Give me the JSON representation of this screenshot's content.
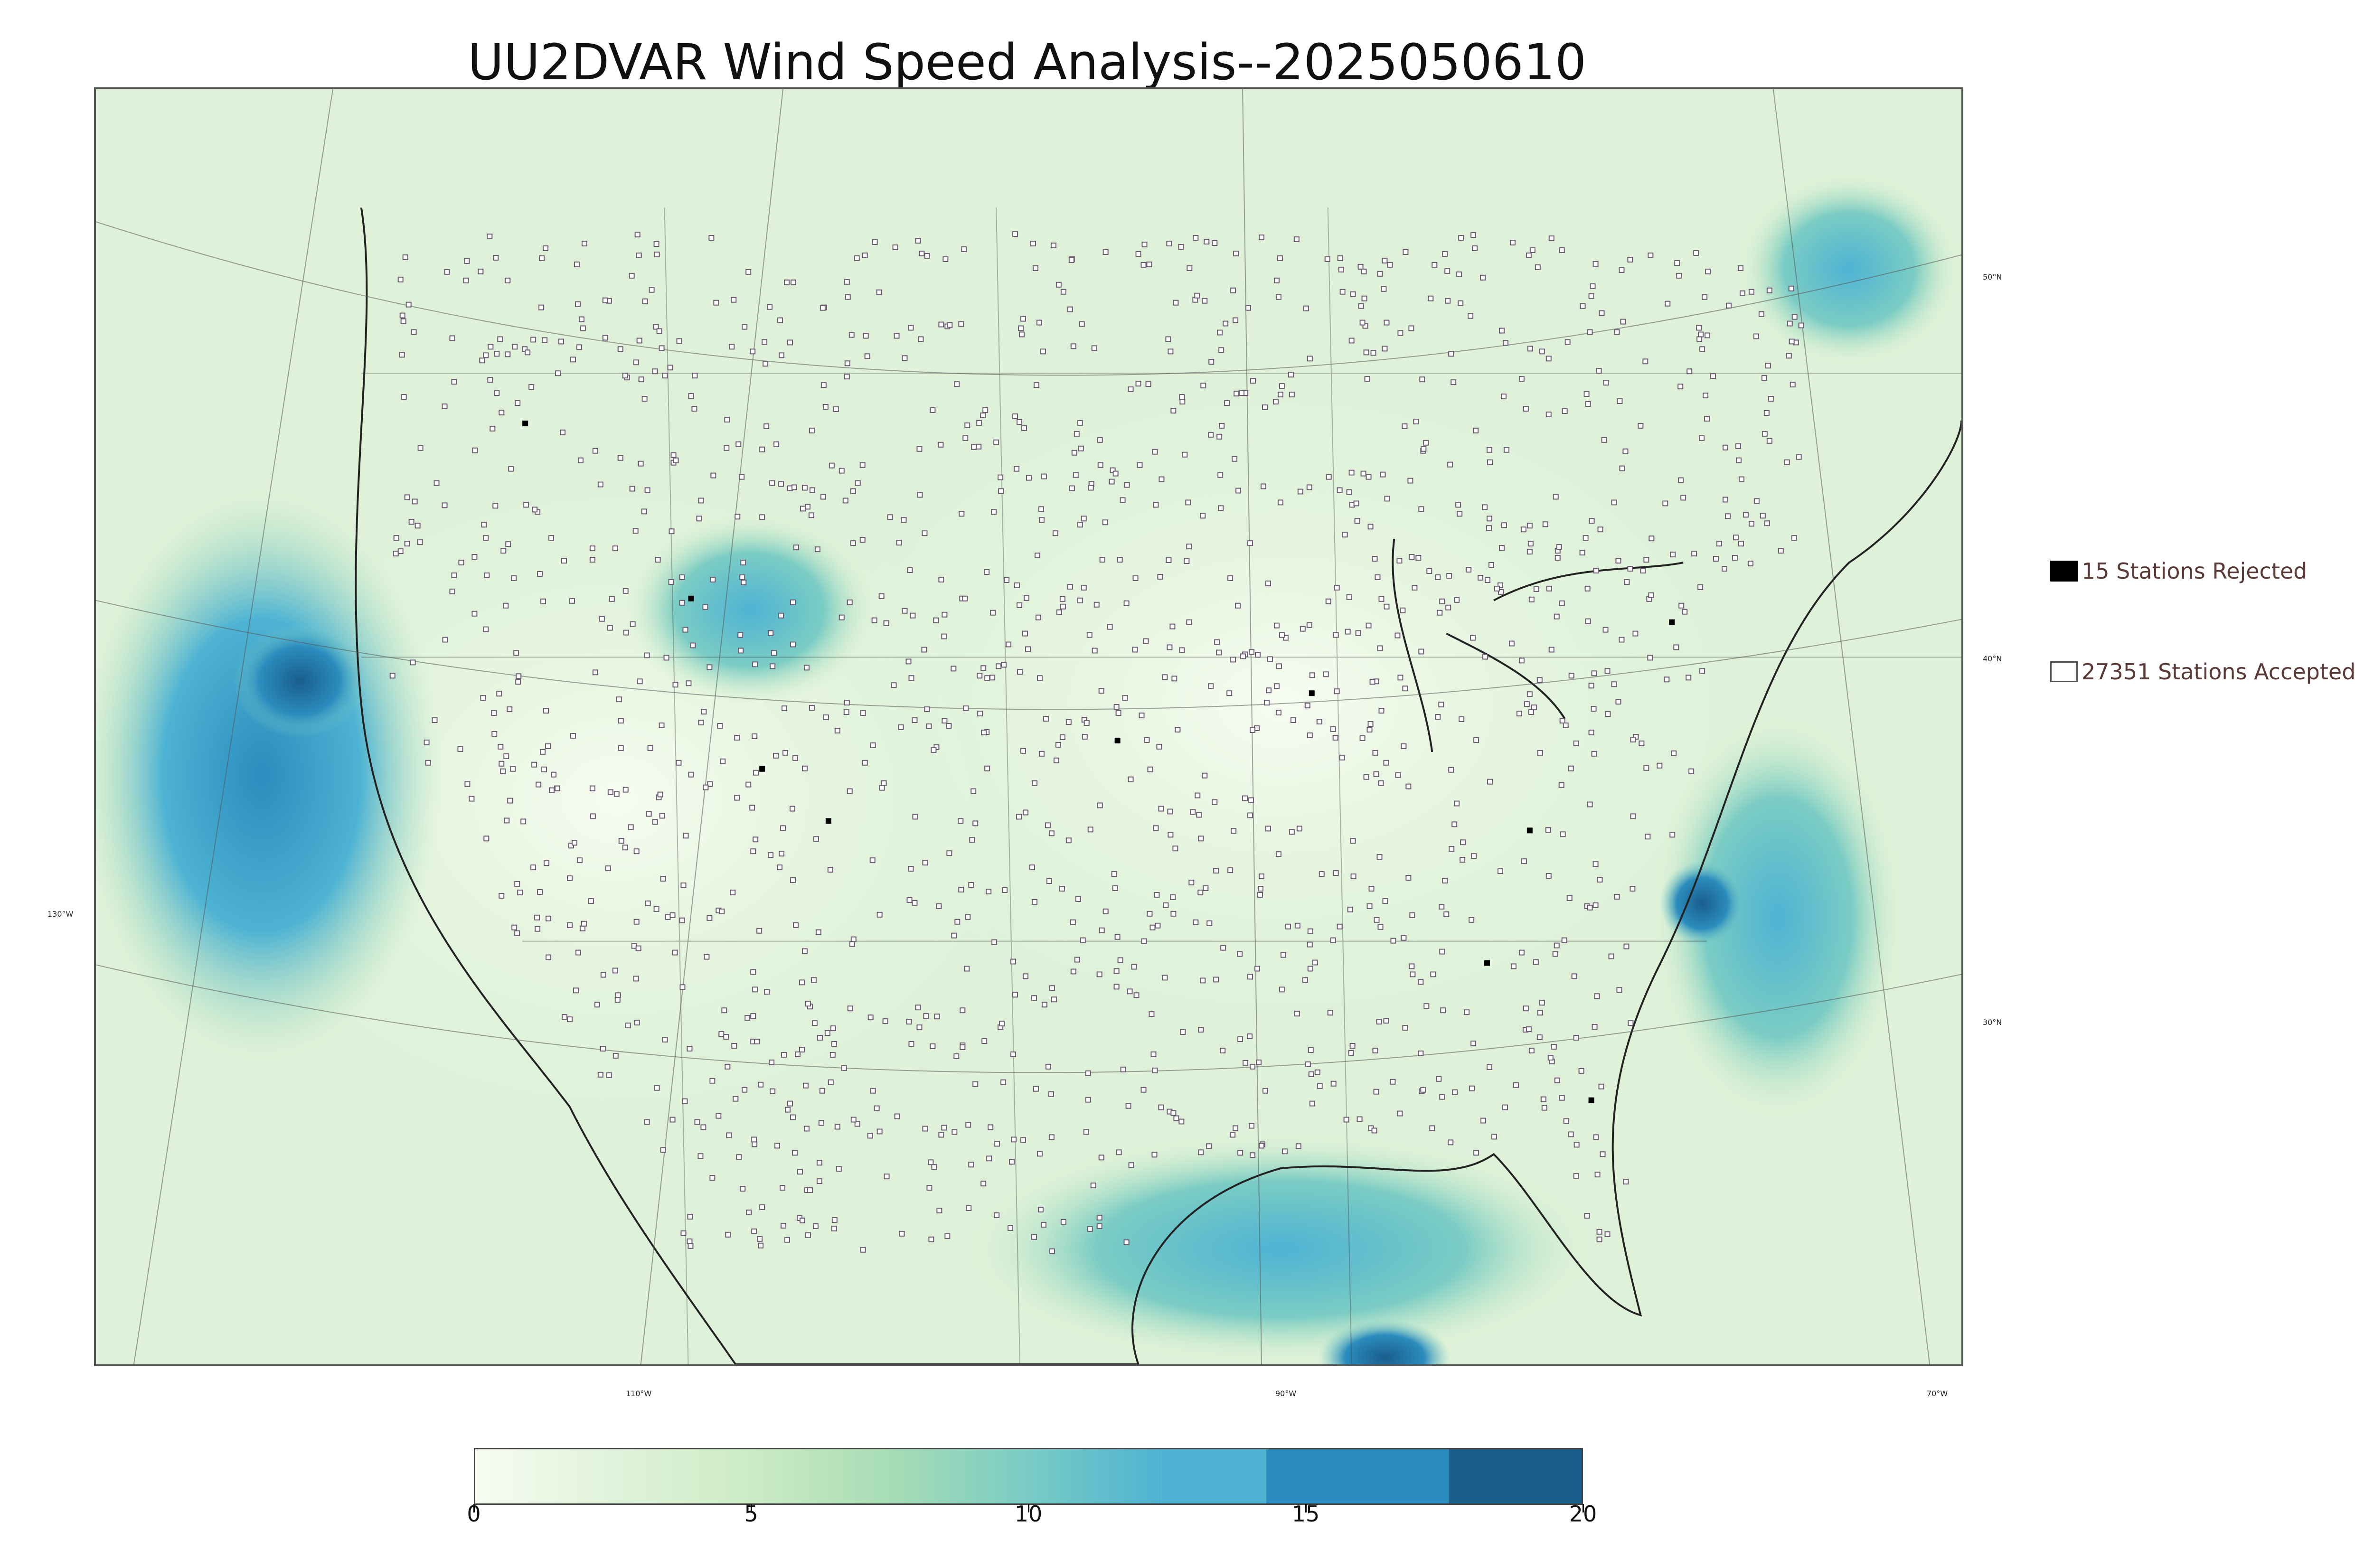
{
  "title": "UU2DVAR Wind Speed Analysis--2025050610",
  "map": {
    "lat_labels": [
      "50°N",
      "40°N",
      "30°N"
    ],
    "lon_labels": [
      "130°W",
      "110°W",
      "90°W",
      "70°W"
    ]
  },
  "legend": {
    "rejected": "15 Stations Rejected",
    "accepted": "27351 Stations Accepted"
  },
  "colorbar": {
    "min": 0,
    "max": 20,
    "ticks": [
      "0",
      "5",
      "10",
      "15",
      "20"
    ],
    "colors": [
      "#f7fcf0",
      "#e0f3db",
      "#ccebc5",
      "#a8ddb5",
      "#7bccc4",
      "#4eb3d3",
      "#2b8cbe",
      "#1a5e8c"
    ]
  }
}
